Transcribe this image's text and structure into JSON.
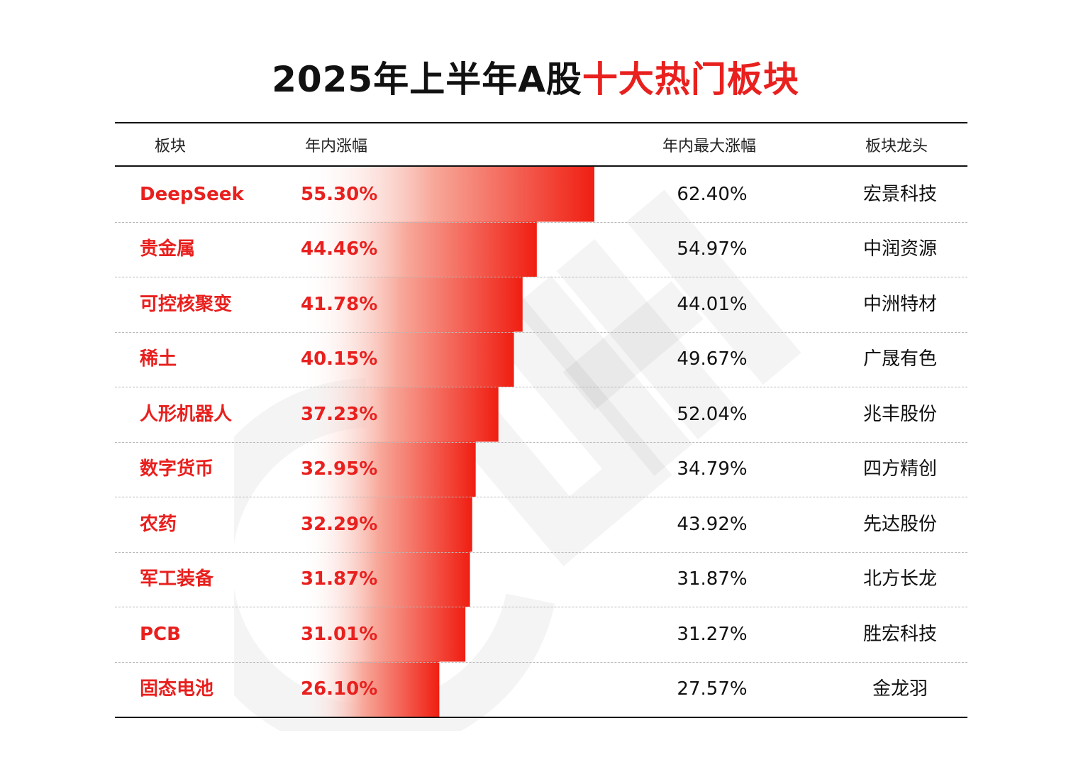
{
  "title": {
    "prefix": "2025年上半年A股",
    "highlight": "十大热门板块"
  },
  "colors": {
    "accent": "#e8201e",
    "text": "#111111",
    "bar_start": "#ffffff",
    "bar_end": "#f01e12"
  },
  "table": {
    "headers": {
      "sector": "板块",
      "ytd": "年内涨幅",
      "max": "年内最大涨幅",
      "leader": "板块龙头"
    }
  },
  "chart_data": {
    "type": "bar",
    "orientation": "horizontal",
    "title": "2025年上半年A股十大热门板块",
    "categories": [
      "DeepSeek",
      "贵金属",
      "可控核聚变",
      "稀土",
      "人形机器人",
      "数字货币",
      "农药",
      "军工装备",
      "PCB",
      "固态电池"
    ],
    "series": [
      {
        "name": "年内涨幅",
        "values": [
          55.3,
          44.46,
          41.78,
          40.15,
          37.23,
          32.95,
          32.29,
          31.87,
          31.01,
          26.1
        ],
        "labels": [
          "55.30%",
          "44.46%",
          "41.78%",
          "40.15%",
          "37.23%",
          "32.95%",
          "32.29%",
          "31.87%",
          "31.01%",
          "26.10%"
        ]
      },
      {
        "name": "年内最大涨幅",
        "values": [
          62.4,
          54.97,
          44.01,
          49.67,
          52.04,
          34.79,
          43.92,
          31.87,
          31.27,
          27.57
        ],
        "labels": [
          "62.40%",
          "54.97%",
          "44.01%",
          "49.67%",
          "52.04%",
          "34.79%",
          "43.92%",
          "31.87%",
          "31.27%",
          "27.57%"
        ]
      }
    ],
    "leaders": [
      "宏景科技",
      "中润资源",
      "中洲特材",
      "广晟有色",
      "兆丰股份",
      "四方精创",
      "先达股份",
      "北方长龙",
      "胜宏科技",
      "金龙羽"
    ],
    "grid": false,
    "legend": "none"
  }
}
